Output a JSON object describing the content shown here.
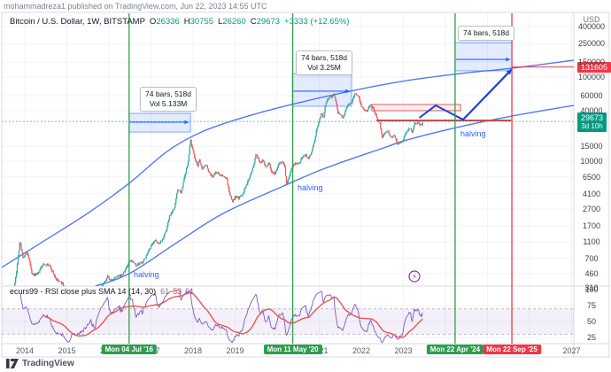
{
  "attribution": "mohammadreza1 published on TradingView.com, Jun 22, 2023 14:55 UTC",
  "legend": {
    "title": "Bitcoin / U.S. Dollar, 1W, BITSTAMP",
    "o_label": "O",
    "o_value": "26336",
    "h_label": "H",
    "h_value": "30755",
    "l_label": "L",
    "l_value": "26260",
    "c_label": "C",
    "c_value": "29673",
    "change": "+3333 (+12.65%)"
  },
  "indicator": {
    "title": "ecurs99 - RSI close plus SMA 14 (14, 30)",
    "value_rsi": "61",
    "value_sma": "53",
    "value_extra": "61"
  },
  "annotations": {
    "measure1_line1": "74 bars, 518d",
    "measure1_line2": "Vol 5.133M",
    "measure2_line1": "74 bars, 518d",
    "measure2_line2": "Vol 3.25M",
    "measure3_line1": "74 bars, 518d",
    "halving": "halving"
  },
  "price_markers": {
    "projection_price": 131605,
    "last_price": 29673,
    "countdown": "3d 10h"
  },
  "axis": {
    "currency": "USD",
    "price_ticks": [
      400000,
      250000,
      150000,
      100000,
      60000,
      40000,
      15000,
      10000,
      6500,
      4100,
      2700,
      1700,
      1100,
      700,
      460,
      310
    ],
    "rsi_ticks": [
      100,
      75,
      50,
      25
    ],
    "years": [
      2014,
      2015,
      2016,
      2017,
      2018,
      2019,
      2020,
      2021,
      2022,
      2023,
      2024,
      2025,
      2027
    ]
  },
  "events": [
    {
      "label": "Mon 04 Jul '16",
      "t": 2016.48,
      "type": "halving",
      "color": "#2e9d4e"
    },
    {
      "label": "Mon 11 May '20",
      "t": 2020.37,
      "type": "halving",
      "color": "#2e9d4e"
    },
    {
      "label": "Mon 22 Apr '24",
      "t": 2024.23,
      "type": "halving",
      "color": "#2e9d4e"
    },
    {
      "label": "Mon 22 Sep '25",
      "t": 2025.58,
      "type": "projection",
      "color": "#f23645"
    }
  ],
  "chart_data": {
    "type": "candlestick",
    "symbol": "BTCUSD",
    "interval": "1W",
    "scale": "log",
    "range_t": [
      2013.63,
      2023.47
    ],
    "price_anchors": [
      [
        2013.63,
        135
      ],
      [
        2013.8,
        480
      ],
      [
        2013.88,
        1100
      ],
      [
        2013.96,
        720
      ],
      [
        2014.04,
        830
      ],
      [
        2014.12,
        620
      ],
      [
        2014.17,
        445
      ],
      [
        2014.3,
        450
      ],
      [
        2014.44,
        600
      ],
      [
        2014.58,
        585
      ],
      [
        2014.75,
        390
      ],
      [
        2014.9,
        350
      ],
      [
        2015.04,
        210
      ],
      [
        2015.12,
        250
      ],
      [
        2015.25,
        235
      ],
      [
        2015.42,
        240
      ],
      [
        2015.55,
        265
      ],
      [
        2015.67,
        235
      ],
      [
        2015.8,
        315
      ],
      [
        2015.9,
        360
      ],
      [
        2015.96,
        430
      ],
      [
        2016.04,
        378
      ],
      [
        2016.17,
        415
      ],
      [
        2016.33,
        450
      ],
      [
        2016.44,
        580
      ],
      [
        2016.5,
        665
      ],
      [
        2016.57,
        650
      ],
      [
        2016.65,
        575
      ],
      [
        2016.8,
        635
      ],
      [
        2016.92,
        790
      ],
      [
        2017.0,
        965
      ],
      [
        2017.08,
        1150
      ],
      [
        2017.17,
        1050
      ],
      [
        2017.27,
        1180
      ],
      [
        2017.37,
        1550
      ],
      [
        2017.44,
        2250
      ],
      [
        2017.5,
        2550
      ],
      [
        2017.56,
        2750
      ],
      [
        2017.62,
        4300
      ],
      [
        2017.67,
        4650
      ],
      [
        2017.71,
        4100
      ],
      [
        2017.77,
        5650
      ],
      [
        2017.83,
        7300
      ],
      [
        2017.88,
        9900
      ],
      [
        2017.94,
        17500
      ],
      [
        2017.98,
        14100
      ],
      [
        2018.04,
        11200
      ],
      [
        2018.1,
        8600
      ],
      [
        2018.15,
        10300
      ],
      [
        2018.23,
        8100
      ],
      [
        2018.3,
        9300
      ],
      [
        2018.38,
        7500
      ],
      [
        2018.46,
        6450
      ],
      [
        2018.54,
        7350
      ],
      [
        2018.62,
        7050
      ],
      [
        2018.71,
        6550
      ],
      [
        2018.79,
        6450
      ],
      [
        2018.87,
        4050
      ],
      [
        2018.94,
        3300
      ],
      [
        2019.0,
        3750
      ],
      [
        2019.09,
        3650
      ],
      [
        2019.17,
        4000
      ],
      [
        2019.28,
        5300
      ],
      [
        2019.37,
        7250
      ],
      [
        2019.44,
        8800
      ],
      [
        2019.49,
        11900
      ],
      [
        2019.54,
        10800
      ],
      [
        2019.6,
        9600
      ],
      [
        2019.65,
        10350
      ],
      [
        2019.73,
        8350
      ],
      [
        2019.8,
        9650
      ],
      [
        2019.87,
        7450
      ],
      [
        2019.96,
        7200
      ],
      [
        2020.04,
        9350
      ],
      [
        2020.12,
        9950
      ],
      [
        2020.18,
        8900
      ],
      [
        2020.22,
        5350
      ],
      [
        2020.29,
        6850
      ],
      [
        2020.36,
        8850
      ],
      [
        2020.44,
        9500
      ],
      [
        2020.52,
        9150
      ],
      [
        2020.6,
        11350
      ],
      [
        2020.68,
        11700
      ],
      [
        2020.75,
        10750
      ],
      [
        2020.83,
        13800
      ],
      [
        2020.9,
        18700
      ],
      [
        2020.96,
        26500
      ],
      [
        2021.02,
        33100
      ],
      [
        2021.06,
        38200
      ],
      [
        2021.1,
        32100
      ],
      [
        2021.15,
        48600
      ],
      [
        2021.21,
        55900
      ],
      [
        2021.27,
        58300
      ],
      [
        2021.31,
        59000
      ],
      [
        2021.35,
        63500
      ],
      [
        2021.4,
        49000
      ],
      [
        2021.44,
        37300
      ],
      [
        2021.5,
        35600
      ],
      [
        2021.56,
        31800
      ],
      [
        2021.62,
        39800
      ],
      [
        2021.69,
        47100
      ],
      [
        2021.77,
        48800
      ],
      [
        2021.83,
        61500
      ],
      [
        2021.87,
        64400
      ],
      [
        2021.94,
        57000
      ],
      [
        2022.0,
        46200
      ],
      [
        2022.06,
        41500
      ],
      [
        2022.12,
        38500
      ],
      [
        2022.17,
        44200
      ],
      [
        2022.23,
        46800
      ],
      [
        2022.29,
        41000
      ],
      [
        2022.35,
        36000
      ],
      [
        2022.4,
        30100
      ],
      [
        2022.44,
        29000
      ],
      [
        2022.5,
        19000
      ],
      [
        2022.56,
        21500
      ],
      [
        2022.62,
        23300
      ],
      [
        2022.67,
        20000
      ],
      [
        2022.73,
        19400
      ],
      [
        2022.79,
        20300
      ],
      [
        2022.85,
        16300
      ],
      [
        2022.92,
        16800
      ],
      [
        2022.98,
        16550
      ],
      [
        2023.04,
        21100
      ],
      [
        2023.1,
        23100
      ],
      [
        2023.15,
        24600
      ],
      [
        2023.21,
        22400
      ],
      [
        2023.27,
        28400
      ],
      [
        2023.31,
        27600
      ],
      [
        2023.35,
        29300
      ],
      [
        2023.4,
        26900
      ],
      [
        2023.44,
        27100
      ],
      [
        2023.47,
        29673
      ]
    ],
    "channel_upper": [
      [
        2013.45,
        546
      ],
      [
        2014.46,
        1130
      ],
      [
        2015.52,
        2450
      ],
      [
        2016.48,
        5460
      ],
      [
        2017.41,
        13370
      ],
      [
        2018.25,
        22800
      ],
      [
        2019.31,
        34400
      ],
      [
        2020.42,
        48300
      ],
      [
        2021.83,
        69500
      ],
      [
        2023.09,
        90800
      ],
      [
        2024.36,
        110200
      ],
      [
        2025.58,
        127350
      ],
      [
        2027.05,
        158500
      ]
    ],
    "channel_lower": [
      [
        2015.68,
        328
      ],
      [
        2016.48,
        460
      ],
      [
        2017.62,
        1080
      ],
      [
        2018.72,
        2400
      ],
      [
        2020.15,
        5070
      ],
      [
        2021.14,
        8240
      ],
      [
        2022.53,
        14380
      ],
      [
        2023.09,
        17900
      ],
      [
        2024.36,
        25760
      ],
      [
        2025.58,
        34400
      ],
      [
        2027.05,
        46000
      ]
    ],
    "projection_path": [
      [
        2023.38,
        32800
      ],
      [
        2023.77,
        46000
      ],
      [
        2024.42,
        31200
      ],
      [
        2025.58,
        124000
      ]
    ],
    "resistance_line": {
      "t": [
        2022.36,
        2025.56
      ],
      "price": 30500
    },
    "target_line": {
      "t": [
        2025.58,
        2027.05
      ],
      "price": 131605
    },
    "supply_zone": {
      "t": [
        2022.25,
        2024.36
      ],
      "price": [
        39800,
        47200
      ]
    },
    "measure_boxes": [
      {
        "t": [
          2016.48,
          2017.94
        ],
        "price": [
          22200,
          37000
        ],
        "arrow_price": 29100
      },
      {
        "t": [
          2020.36,
          2021.77
        ],
        "price": [
          45000,
          110000
        ],
        "arrow_price": 68000
      },
      {
        "t": [
          2024.23,
          2025.58
        ],
        "price": [
          118600,
          257000
        ],
        "arrow_price": 162000
      }
    ],
    "rsi": {
      "length": 14,
      "smoothing": 30,
      "bands": [
        70,
        30
      ]
    },
    "colors": {
      "up": "#26a69a",
      "down": "#ef5350",
      "channel": "#5179f3",
      "projection": "#1c40d8",
      "resistance": "#c44f4a",
      "zone_border": "#e57373",
      "measure_fill": "rgba(41,98,255,0.13)",
      "measure_border": "rgba(41,98,255,0.55)",
      "rsi": "#7e57c2",
      "rsi_sma": "#ef5350",
      "halving_line": "#2e9d4e",
      "projection_line": "#f23645",
      "last_price_line": "#26a69a",
      "grid": "#f0f3fa",
      "frame": "#d8dbe1"
    }
  }
}
